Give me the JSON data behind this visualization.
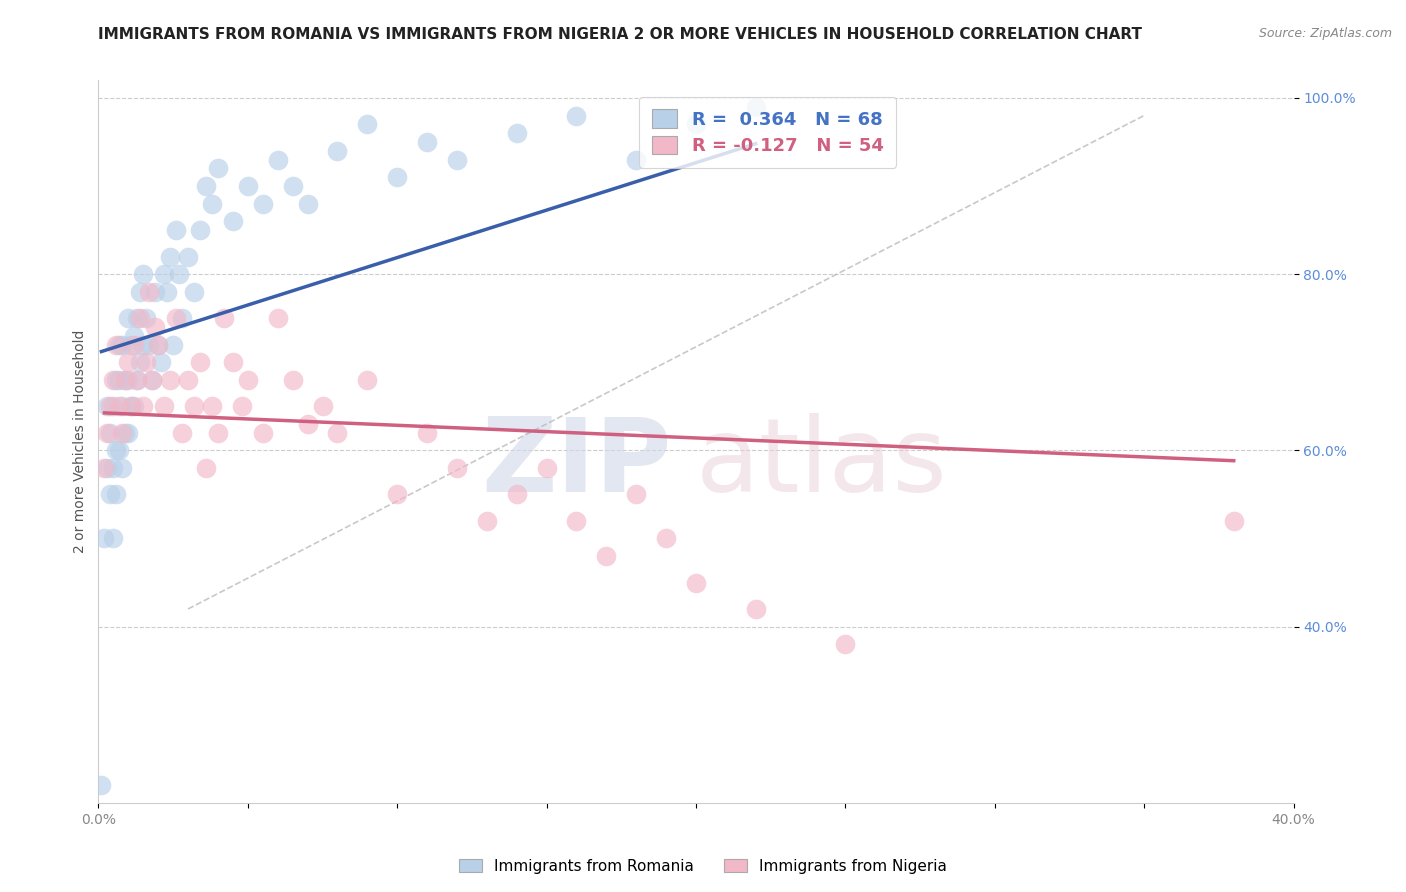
{
  "title": "IMMIGRANTS FROM ROMANIA VS IMMIGRANTS FROM NIGERIA 2 OR MORE VEHICLES IN HOUSEHOLD CORRELATION CHART",
  "source": "Source: ZipAtlas.com",
  "ylabel": "2 or more Vehicles in Household",
  "xlim": [
    0.0,
    0.4
  ],
  "ylim": [
    0.2,
    1.02
  ],
  "xticks": [
    0.0,
    0.05,
    0.1,
    0.15,
    0.2,
    0.25,
    0.3,
    0.35,
    0.4
  ],
  "xtick_labels": [
    "0.0%",
    "",
    "",
    "",
    "",
    "",
    "",
    "",
    "40.0%"
  ],
  "yticks": [
    0.4,
    0.6,
    0.8,
    1.0
  ],
  "ytick_labels": [
    "40.0%",
    "60.0%",
    "80.0%",
    "100.0%"
  ],
  "romania_R": 0.364,
  "romania_N": 68,
  "nigeria_R": -0.127,
  "nigeria_N": 54,
  "romania_color": "#b8d0e8",
  "nigeria_color": "#f2b8c8",
  "romania_line_color": "#3a5faa",
  "nigeria_line_color": "#d06080",
  "ref_line_color": "#bbbbbb",
  "legend_label_romania": "Immigrants from Romania",
  "legend_label_nigeria": "Immigrants from Nigeria",
  "romania_x": [
    0.001,
    0.002,
    0.003,
    0.003,
    0.004,
    0.004,
    0.005,
    0.005,
    0.005,
    0.006,
    0.006,
    0.006,
    0.007,
    0.007,
    0.007,
    0.008,
    0.008,
    0.008,
    0.009,
    0.009,
    0.01,
    0.01,
    0.01,
    0.011,
    0.011,
    0.012,
    0.012,
    0.013,
    0.013,
    0.014,
    0.014,
    0.015,
    0.015,
    0.016,
    0.017,
    0.018,
    0.019,
    0.02,
    0.021,
    0.022,
    0.023,
    0.024,
    0.025,
    0.026,
    0.027,
    0.028,
    0.03,
    0.032,
    0.034,
    0.036,
    0.038,
    0.04,
    0.045,
    0.05,
    0.055,
    0.06,
    0.065,
    0.07,
    0.08,
    0.09,
    0.1,
    0.11,
    0.12,
    0.14,
    0.16,
    0.18,
    0.2,
    0.22
  ],
  "romania_y": [
    0.22,
    0.5,
    0.58,
    0.65,
    0.55,
    0.62,
    0.5,
    0.58,
    0.65,
    0.55,
    0.6,
    0.68,
    0.6,
    0.68,
    0.72,
    0.58,
    0.65,
    0.72,
    0.62,
    0.68,
    0.62,
    0.68,
    0.75,
    0.65,
    0.72,
    0.65,
    0.73,
    0.68,
    0.75,
    0.7,
    0.78,
    0.72,
    0.8,
    0.75,
    0.72,
    0.68,
    0.78,
    0.72,
    0.7,
    0.8,
    0.78,
    0.82,
    0.72,
    0.85,
    0.8,
    0.75,
    0.82,
    0.78,
    0.85,
    0.9,
    0.88,
    0.92,
    0.86,
    0.9,
    0.88,
    0.93,
    0.9,
    0.88,
    0.94,
    0.97,
    0.91,
    0.95,
    0.93,
    0.96,
    0.98,
    0.93,
    0.97,
    0.99
  ],
  "nigeria_x": [
    0.002,
    0.003,
    0.004,
    0.005,
    0.006,
    0.007,
    0.008,
    0.009,
    0.01,
    0.011,
    0.012,
    0.013,
    0.014,
    0.015,
    0.016,
    0.017,
    0.018,
    0.019,
    0.02,
    0.022,
    0.024,
    0.026,
    0.028,
    0.03,
    0.032,
    0.034,
    0.036,
    0.038,
    0.04,
    0.042,
    0.045,
    0.048,
    0.05,
    0.055,
    0.06,
    0.065,
    0.07,
    0.075,
    0.08,
    0.09,
    0.1,
    0.11,
    0.12,
    0.13,
    0.14,
    0.15,
    0.16,
    0.17,
    0.18,
    0.19,
    0.2,
    0.22,
    0.25,
    0.38
  ],
  "nigeria_y": [
    0.58,
    0.62,
    0.65,
    0.68,
    0.72,
    0.65,
    0.62,
    0.68,
    0.7,
    0.65,
    0.72,
    0.68,
    0.75,
    0.65,
    0.7,
    0.78,
    0.68,
    0.74,
    0.72,
    0.65,
    0.68,
    0.75,
    0.62,
    0.68,
    0.65,
    0.7,
    0.58,
    0.65,
    0.62,
    0.75,
    0.7,
    0.65,
    0.68,
    0.62,
    0.75,
    0.68,
    0.63,
    0.65,
    0.62,
    0.68,
    0.55,
    0.62,
    0.58,
    0.52,
    0.55,
    0.58,
    0.52,
    0.48,
    0.55,
    0.5,
    0.45,
    0.42,
    0.38,
    0.52
  ],
  "watermark_zip": "ZIP",
  "watermark_atlas": "atlas",
  "title_fontsize": 11,
  "axis_label_fontsize": 10,
  "tick_fontsize": 10,
  "legend_fontsize": 13
}
